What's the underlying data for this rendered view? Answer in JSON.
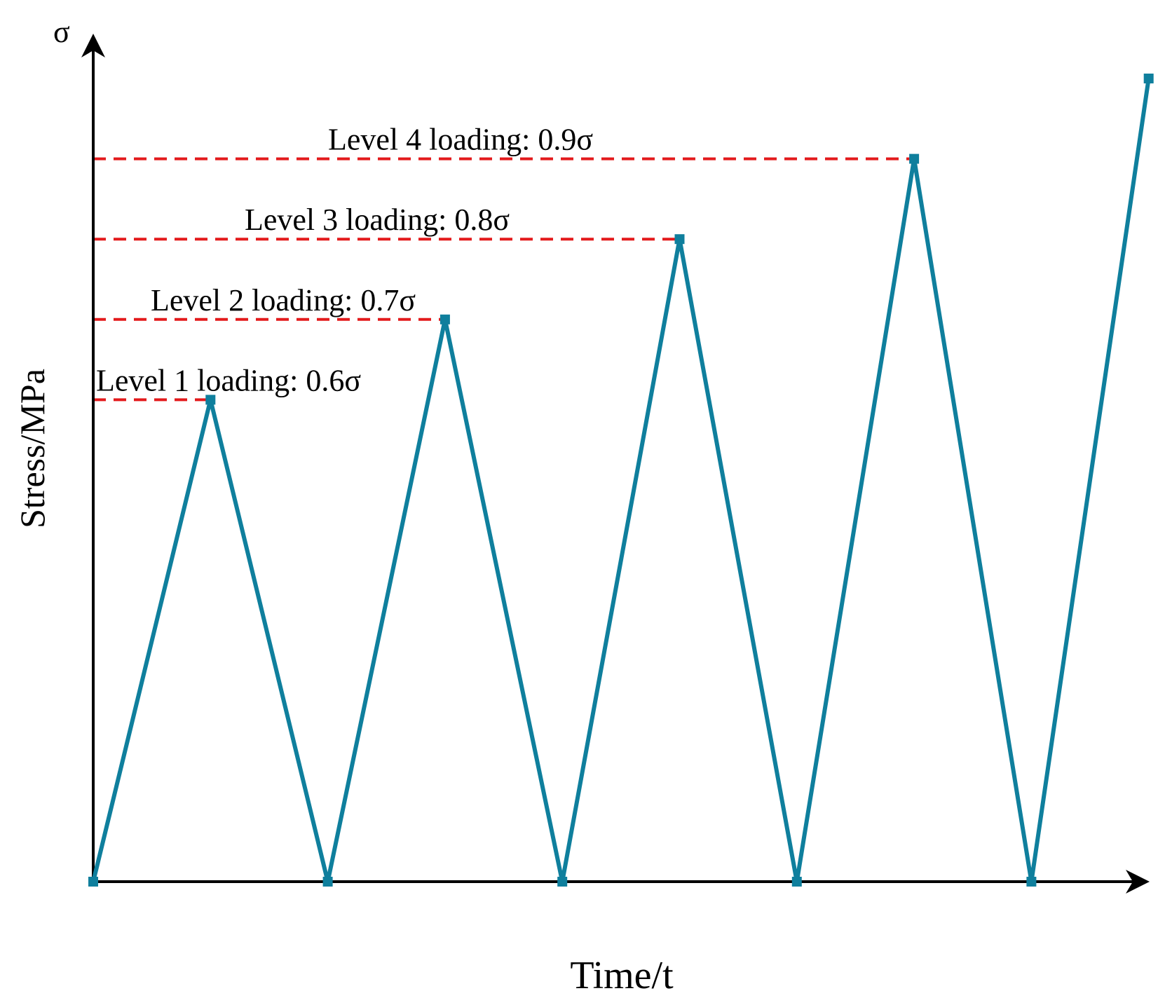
{
  "chart_data": {
    "type": "line",
    "ylabel": "Stress/MPa",
    "xlabel": "Time/t",
    "y_axis_symbol": "σ",
    "series": [
      {
        "x": [
          0,
          1,
          2,
          3,
          4,
          5,
          6,
          7,
          8,
          9
        ],
        "y": [
          0,
          0.6,
          0,
          0.7,
          0,
          0.8,
          0,
          0.9,
          0,
          1.0
        ]
      }
    ],
    "reference_lines": [
      {
        "level": 0.6,
        "label": "Level 1 loading: 0.6σ"
      },
      {
        "level": 0.7,
        "label": "Level 2 loading: 0.7σ"
      },
      {
        "level": 0.8,
        "label": "Level 3 loading: 0.8σ"
      },
      {
        "level": 0.9,
        "label": "Level 4 loading: 0.9σ"
      }
    ],
    "colors": {
      "series": "#0f7f9d",
      "reference": "#e31a1c",
      "axis": "#000000"
    },
    "grid": false
  }
}
